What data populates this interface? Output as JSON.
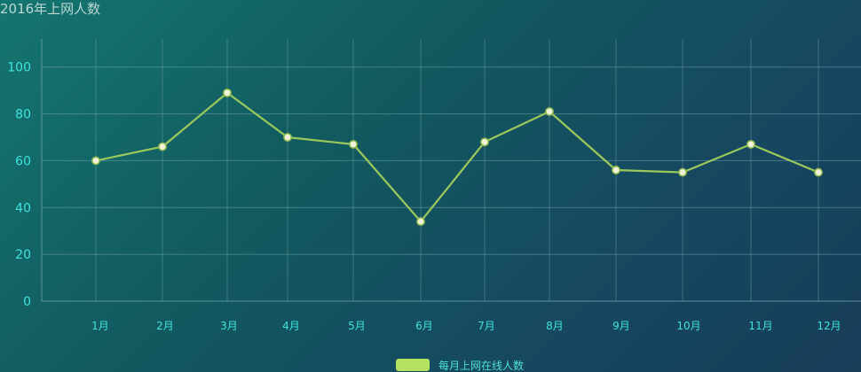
{
  "chart_data": {
    "type": "line",
    "title": "2016年上网人数",
    "categories": [
      "1月",
      "2月",
      "3月",
      "4月",
      "5月",
      "6月",
      "7月",
      "8月",
      "9月",
      "10月",
      "11月",
      "12月"
    ],
    "series": [
      {
        "name": "每月上网在线人数",
        "values": [
          60,
          66,
          89,
          70,
          67,
          34,
          68,
          81,
          56,
          55,
          67,
          55
        ],
        "color": "#b5e061"
      }
    ],
    "yticks": [
      0,
      20,
      40,
      60,
      80,
      100
    ],
    "ylim": [
      0,
      112
    ],
    "grid": true,
    "legend_position": "bottom-center",
    "colors": {
      "axis_text": "#3fe3dc",
      "grid": "#6ea3a6",
      "line": "#9bc85a",
      "marker_fill": "#f0f2d8",
      "marker_stroke": "#8cb84e"
    }
  }
}
